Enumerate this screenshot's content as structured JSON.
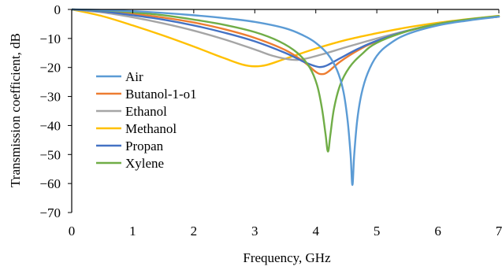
{
  "chart_data": {
    "type": "line",
    "xlabel": "Frequency, GHz",
    "ylabel": "Transmission coefficient, dB",
    "xlim": [
      0,
      7
    ],
    "ylim": [
      -70,
      0
    ],
    "xticks": [
      "0",
      "1",
      "2",
      "3",
      "4",
      "5",
      "6",
      "7"
    ],
    "yticks": [
      "0",
      "-10",
      "-20",
      "-30",
      "-40",
      "-50",
      "-60",
      "-70"
    ],
    "grid": false,
    "legend_position": "left-center",
    "series": [
      {
        "name": "Air",
        "color": "#5b9bd5",
        "points": [
          [
            0,
            0
          ],
          [
            0.5,
            -0.2
          ],
          [
            1,
            -0.6
          ],
          [
            1.5,
            -1.2
          ],
          [
            2,
            -2
          ],
          [
            2.5,
            -3
          ],
          [
            3,
            -4.3
          ],
          [
            3.5,
            -6.5
          ],
          [
            3.8,
            -9
          ],
          [
            4,
            -11.5
          ],
          [
            4.2,
            -15.5
          ],
          [
            4.35,
            -21
          ],
          [
            4.45,
            -28
          ],
          [
            4.52,
            -38
          ],
          [
            4.57,
            -50
          ],
          [
            4.6,
            -60.5
          ],
          [
            4.63,
            -50
          ],
          [
            4.68,
            -38
          ],
          [
            4.75,
            -29
          ],
          [
            4.85,
            -22
          ],
          [
            5,
            -16
          ],
          [
            5.2,
            -12
          ],
          [
            5.5,
            -8.5
          ],
          [
            6,
            -5.5
          ],
          [
            6.5,
            -3.8
          ],
          [
            7,
            -2.5
          ]
        ]
      },
      {
        "name": "Butanol-1-o1",
        "color": "#ed7d31",
        "points": [
          [
            0,
            0
          ],
          [
            0.5,
            -0.5
          ],
          [
            1,
            -1.5
          ],
          [
            1.5,
            -2.8
          ],
          [
            2,
            -4.5
          ],
          [
            2.5,
            -6.8
          ],
          [
            3,
            -9.8
          ],
          [
            3.5,
            -14
          ],
          [
            3.8,
            -18
          ],
          [
            4,
            -21.5
          ],
          [
            4.1,
            -22.3
          ],
          [
            4.2,
            -21.5
          ],
          [
            4.4,
            -18
          ],
          [
            4.7,
            -14
          ],
          [
            5,
            -11
          ],
          [
            5.5,
            -7.5
          ],
          [
            6,
            -5
          ],
          [
            6.5,
            -3.5
          ],
          [
            7,
            -2.5
          ]
        ]
      },
      {
        "name": "Ethanol",
        "color": "#a5a5a5",
        "points": [
          [
            0,
            0
          ],
          [
            0.5,
            -1
          ],
          [
            1,
            -2.7
          ],
          [
            1.5,
            -4.8
          ],
          [
            2,
            -7.3
          ],
          [
            2.5,
            -10.3
          ],
          [
            3,
            -13.8
          ],
          [
            3.3,
            -16
          ],
          [
            3.6,
            -17.3
          ],
          [
            3.8,
            -17.1
          ],
          [
            4.1,
            -15.5
          ],
          [
            4.5,
            -13
          ],
          [
            5,
            -10
          ],
          [
            5.5,
            -7.3
          ],
          [
            6,
            -5
          ],
          [
            6.5,
            -3.5
          ],
          [
            7,
            -2.5
          ]
        ]
      },
      {
        "name": "Methanol",
        "color": "#ffc000",
        "points": [
          [
            0,
            0
          ],
          [
            0.5,
            -2.3
          ],
          [
            1,
            -5.5
          ],
          [
            1.5,
            -9
          ],
          [
            2,
            -12.8
          ],
          [
            2.5,
            -16.8
          ],
          [
            2.8,
            -19
          ],
          [
            3,
            -19.6
          ],
          [
            3.2,
            -19.1
          ],
          [
            3.5,
            -17
          ],
          [
            4,
            -13.5
          ],
          [
            4.5,
            -10.5
          ],
          [
            5,
            -8.2
          ],
          [
            5.5,
            -6.2
          ],
          [
            6,
            -4.6
          ],
          [
            6.5,
            -3.3
          ],
          [
            7,
            -2.2
          ]
        ]
      },
      {
        "name": "Propan",
        "color": "#4472c4",
        "points": [
          [
            0,
            0
          ],
          [
            0.5,
            -0.7
          ],
          [
            1,
            -2
          ],
          [
            1.5,
            -3.5
          ],
          [
            2,
            -5.5
          ],
          [
            2.5,
            -8
          ],
          [
            3,
            -11
          ],
          [
            3.5,
            -15
          ],
          [
            3.8,
            -18
          ],
          [
            4,
            -19.6
          ],
          [
            4.1,
            -19.8
          ],
          [
            4.2,
            -19.1
          ],
          [
            4.4,
            -16.8
          ],
          [
            4.7,
            -13.5
          ],
          [
            5,
            -10.8
          ],
          [
            5.5,
            -7.4
          ],
          [
            6,
            -5
          ],
          [
            6.5,
            -3.5
          ],
          [
            7,
            -2.5
          ]
        ]
      },
      {
        "name": "Xylene",
        "color": "#70ad47",
        "points": [
          [
            0,
            0
          ],
          [
            0.5,
            -0.3
          ],
          [
            1,
            -1
          ],
          [
            1.5,
            -2
          ],
          [
            2,
            -3.5
          ],
          [
            2.5,
            -5.3
          ],
          [
            3,
            -7.8
          ],
          [
            3.4,
            -11
          ],
          [
            3.7,
            -15
          ],
          [
            3.9,
            -20
          ],
          [
            4.02,
            -26
          ],
          [
            4.1,
            -34
          ],
          [
            4.16,
            -43
          ],
          [
            4.2,
            -49
          ],
          [
            4.24,
            -43
          ],
          [
            4.3,
            -34
          ],
          [
            4.4,
            -26
          ],
          [
            4.55,
            -20
          ],
          [
            4.75,
            -15.5
          ],
          [
            5,
            -11.5
          ],
          [
            5.5,
            -7.5
          ],
          [
            6,
            -5
          ],
          [
            6.5,
            -3.4
          ],
          [
            7,
            -2.3
          ]
        ]
      }
    ]
  }
}
